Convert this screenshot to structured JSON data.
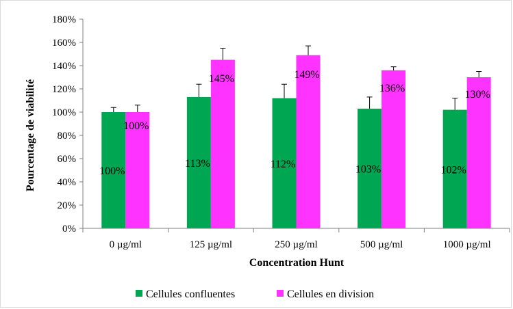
{
  "chart_data": {
    "type": "bar",
    "title": "",
    "xlabel": "Concentration Hunt",
    "ylabel": "Pourcentage de viabilité",
    "ylim": [
      0,
      180
    ],
    "y_tick_step": 20,
    "y_tick_suffix": "%",
    "categories": [
      "0 µg/ml",
      "125 µg/ml",
      "250 µg/ml",
      "500 µg/ml",
      "1000 µg/ml"
    ],
    "series": [
      {
        "name": "Cellules confluentes",
        "color": "#00a651",
        "values": [
          100,
          113,
          112,
          103,
          102
        ],
        "errors": [
          4,
          11,
          12,
          10,
          10
        ],
        "labels": [
          "100%",
          "113%",
          "112%",
          "103%",
          "102%"
        ]
      },
      {
        "name": "Cellules en division",
        "color": "#ff33ff",
        "values": [
          100,
          145,
          149,
          136,
          130
        ],
        "errors": [
          6,
          10,
          8,
          3,
          5
        ],
        "labels": [
          "100%",
          "145%",
          "149%",
          "136%",
          "130%"
        ]
      }
    ],
    "grid": false,
    "legend": "bottom"
  }
}
